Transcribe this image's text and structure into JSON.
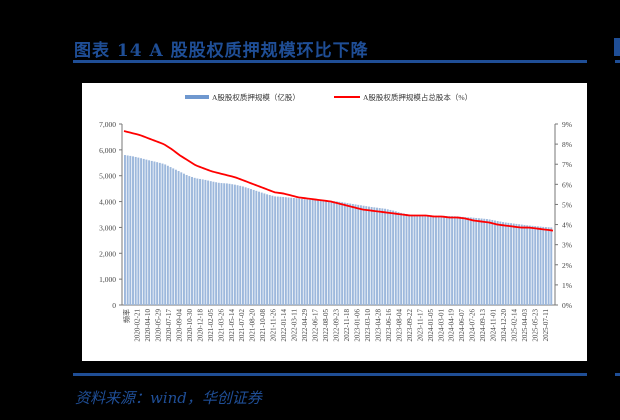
{
  "header": {
    "title": "图表 14   A 股股权质押规模环比下降"
  },
  "footer": {
    "source": "资料来源：wind，华创证券"
  },
  "colors": {
    "brand": "#1f4e96",
    "bar": "#9db8dc",
    "line": "#ff0000",
    "background": "#000000",
    "panel": "#ffffff"
  },
  "chart_data": {
    "type": "bar+line",
    "title": "",
    "legend": [
      "A股股权质押规模（亿股）",
      "A股股权质押规模占总股本（%）"
    ],
    "legend_position": "top",
    "y_left": {
      "label": "",
      "ticks": [
        "0",
        "1,000",
        "2,000",
        "3,000",
        "4,000",
        "5,000",
        "6,000",
        "7,000"
      ],
      "range": [
        0,
        7000
      ]
    },
    "y_right": {
      "label": "",
      "ticks": [
        "0%",
        "1%",
        "2%",
        "3%",
        "4%",
        "5%",
        "6%",
        "7%",
        "8%",
        "9%"
      ],
      "range": [
        0,
        9
      ]
    },
    "x_tick_labels": [
      "频率",
      "2020-02-21",
      "2020-04-10",
      "2020-05-29",
      "2020-07-17",
      "2020-09-04",
      "2020-10-30",
      "2020-12-18",
      "2021-02-05",
      "2021-03-26",
      "2021-05-14",
      "2021-07-02",
      "2021-08-20",
      "2021-10-08",
      "2021-11-26",
      "2022-01-14",
      "2022-03-11",
      "2022-04-29",
      "2022-06-17",
      "2022-08-05",
      "2022-09-23",
      "2022-11-18",
      "2023-01-06",
      "2023-03-10",
      "2023-04-28",
      "2023-06-16",
      "2023-08-04",
      "2023-09-22",
      "2023-11-17",
      "2024-01-05",
      "2024-03-01",
      "2024-04-19",
      "2024-06-07",
      "2024-07-26",
      "2024-09-13",
      "2024-11-01",
      "2024-12-20",
      "2025-02-14",
      "2025-04-03",
      "2025-05-23",
      "2025-07-11"
    ],
    "series": [
      {
        "name": "A股股权质押规模（亿股）",
        "type": "bar",
        "axis": "left",
        "values": [
          5800,
          5750,
          5680,
          5600,
          5530,
          5450,
          5300,
          5150,
          5000,
          4900,
          4850,
          4780,
          4720,
          4700,
          4650,
          4580,
          4480,
          4380,
          4280,
          4200,
          4180,
          4150,
          4120,
          4080,
          4060,
          4050,
          4030,
          4000,
          3950,
          3900,
          3850,
          3800,
          3760,
          3720,
          3650,
          3560,
          3500,
          3480,
          3470,
          3460,
          3450,
          3440,
          3430,
          3400,
          3380,
          3350,
          3320,
          3260,
          3200,
          3160,
          3120,
          3080,
          3050,
          3020,
          3000
        ]
      },
      {
        "name": "A股股权质押规模占总股本（%）",
        "type": "line",
        "axis": "right",
        "values": [
          8.65,
          8.55,
          8.45,
          8.3,
          8.15,
          8.0,
          7.75,
          7.45,
          7.2,
          6.95,
          6.8,
          6.65,
          6.55,
          6.45,
          6.35,
          6.2,
          6.05,
          5.9,
          5.75,
          5.6,
          5.55,
          5.45,
          5.35,
          5.3,
          5.25,
          5.2,
          5.15,
          5.05,
          4.95,
          4.85,
          4.75,
          4.7,
          4.65,
          4.6,
          4.55,
          4.5,
          4.45,
          4.45,
          4.45,
          4.4,
          4.4,
          4.35,
          4.35,
          4.3,
          4.2,
          4.15,
          4.1,
          4.0,
          3.95,
          3.9,
          3.85,
          3.85,
          3.8,
          3.75,
          3.7
        ]
      }
    ]
  }
}
